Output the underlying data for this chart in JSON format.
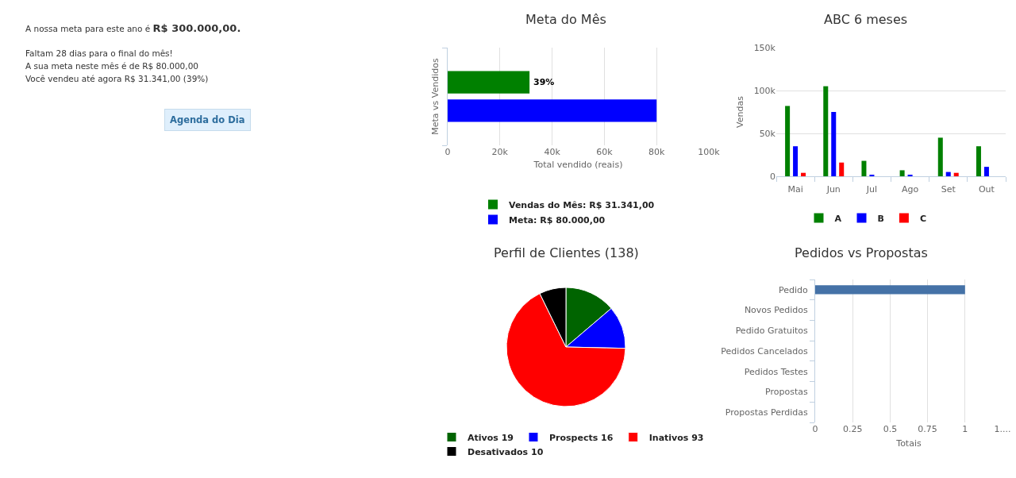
{
  "chart_data": [
    {
      "type": "other",
      "annotations": [
        "A nossa meta para este ano é",
        "R$ 300.000,00.",
        "Faltam 28 dias para o final do mês!",
        "A sua meta neste mês é de R$ 80.000,00",
        "Você vendeu até agora R$ 31.341,00 (39%)",
        "Agenda do Dia"
      ]
    },
    {
      "type": "bar",
      "orientation": "horizontal",
      "title": "Meta do Mês",
      "xlabel": "Total vendido (reais)",
      "ylabel": "Meta vs Vendidos",
      "categories": [
        null
      ],
      "series": [
        {
          "name": "Vendas do Mês: R$ 31.341,00",
          "color": "#008000",
          "values": [
            31341
          ]
        },
        {
          "name": "Meta: R$ 80.000,00",
          "color": "#0000ff",
          "values": [
            80000
          ]
        }
      ],
      "annotations": [
        {
          "text": "39%",
          "x": 31341
        }
      ],
      "xlim": [
        0,
        100000
      ],
      "xticks": [
        0,
        {
          "value": 20000,
          "label": "20k"
        },
        {
          "value": 40000,
          "label": "40k"
        },
        {
          "value": 60000,
          "label": "60k"
        },
        {
          "value": 80000,
          "label": "80k"
        },
        {
          "value": 100000,
          "label": "100k"
        }
      ],
      "grid": "x",
      "legend": "bottom",
      "tick_labels": "x"
    },
    {
      "type": "bar",
      "title": "ABC 6 meses",
      "ylabel": "Vendas",
      "categories": [
        "Mai",
        "Jun",
        "Jul",
        "Ago",
        "Set",
        "Out"
      ],
      "series": [
        {
          "name": "A",
          "color": "#008000",
          "values": [
            82000,
            105000,
            18000,
            7000,
            45000,
            35000
          ]
        },
        {
          "name": "B",
          "color": "#0000ff",
          "values": [
            35000,
            75000,
            1000,
            1000,
            5000,
            11000
          ]
        },
        {
          "name": "C",
          "color": "#ff0000",
          "values": [
            4000,
            16000,
            0,
            0,
            4000,
            0
          ]
        }
      ],
      "ylim": [
        0,
        150000
      ],
      "yticks": [
        0,
        {
          "value": 50000,
          "label": "50k"
        },
        {
          "value": 100000,
          "label": "100k"
        },
        {
          "value": 150000,
          "label": "150k"
        }
      ],
      "grid": "y",
      "legend": "bottom"
    },
    {
      "type": "pie",
      "title": "Perfil de Clientes (138)",
      "categories": [
        "Ativos 19",
        "Prospects 16",
        "Inativos 93",
        "Desativados 10"
      ],
      "values": [
        19,
        16,
        93,
        10
      ],
      "colors": [
        "#006400",
        "#0000ff",
        "#ff0000",
        "#000000"
      ],
      "legend": "bottom"
    },
    {
      "type": "bar",
      "orientation": "horizontal",
      "title": "Pedidos vs Propostas",
      "xlabel": "Totais",
      "categories": [
        "Pedido",
        "Novos Pedidos",
        "Pedido Gratuitos",
        "Pedidos Cancelados",
        "Pedidos Testes",
        "Propostas",
        "Propostas Perdidas"
      ],
      "values": [
        1,
        0,
        0,
        0,
        0,
        0,
        0
      ],
      "color": "#4572a7",
      "xlim": [
        0,
        1.25
      ],
      "xticks": [
        0,
        0.25,
        0.5,
        0.75,
        1,
        {
          "value": 1.25,
          "label": "1...."
        }
      ],
      "grid": "x"
    }
  ]
}
